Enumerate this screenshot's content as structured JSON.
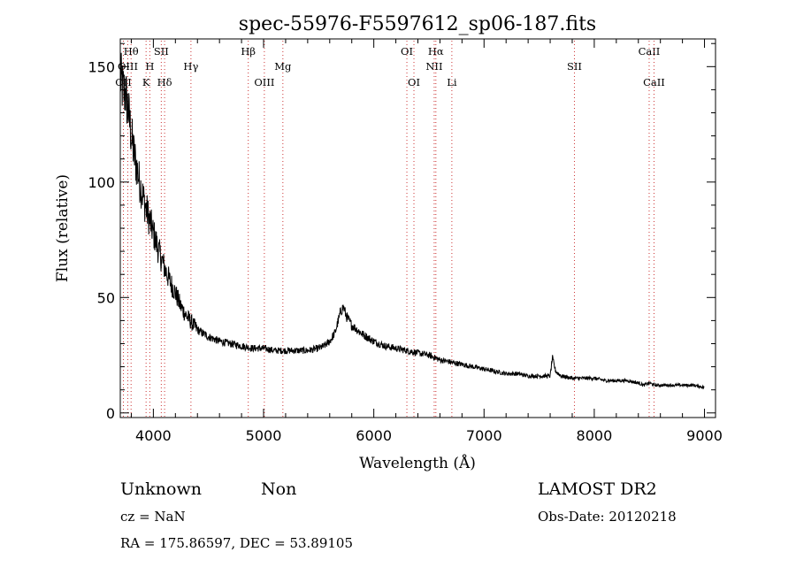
{
  "chart_data": {
    "type": "line",
    "title": "spec-55976-F5597612_sp06-187.fits",
    "xlabel": "Wavelength (Å)",
    "ylabel": "Flux (relative)",
    "xlim": [
      3700,
      9100
    ],
    "ylim": [
      -2,
      162
    ],
    "xticks": [
      4000,
      5000,
      6000,
      7000,
      8000,
      9000
    ],
    "yticks": [
      0,
      50,
      100,
      150
    ],
    "x_tick_labels": [
      "4000",
      "5000",
      "6000",
      "7000",
      "8000",
      "9000"
    ],
    "y_tick_labels": [
      "0",
      "50",
      "100",
      "150"
    ],
    "grid": false,
    "series": [
      {
        "color": "#000000",
        "x": [
          3700,
          3725,
          3750,
          3775,
          3800,
          3825,
          3850,
          3875,
          3900,
          3925,
          3950,
          3975,
          4000,
          4050,
          4100,
          4150,
          4200,
          4250,
          4300,
          4350,
          4400,
          4500,
          4600,
          4700,
          4800,
          4900,
          5000,
          5100,
          5200,
          5300,
          5400,
          5500,
          5550,
          5600,
          5650,
          5700,
          5725,
          5750,
          5775,
          5800,
          5850,
          5900,
          6000,
          6100,
          6200,
          6300,
          6400,
          6500,
          6600,
          6700,
          6800,
          6900,
          7000,
          7100,
          7200,
          7300,
          7400,
          7500,
          7550,
          7600,
          7620,
          7650,
          7700,
          7800,
          7900,
          8000,
          8100,
          8200,
          8300,
          8400,
          8450,
          8500,
          8550,
          8600,
          8700,
          8800,
          8900,
          9000
        ],
        "y": [
          145,
          140,
          138,
          130,
          120,
          112,
          106,
          100,
          95,
          90,
          86,
          82,
          78,
          70,
          63,
          57,
          52,
          46,
          42,
          39,
          36,
          33,
          31,
          30,
          29,
          28,
          28,
          27,
          27,
          27,
          27,
          28,
          29,
          31,
          35,
          44,
          46,
          42,
          40,
          38,
          36,
          34,
          31,
          29,
          28,
          27,
          26,
          25,
          23,
          22,
          21,
          20,
          19,
          18,
          17,
          17,
          16,
          16,
          16,
          16,
          24,
          18,
          16,
          15,
          15,
          15,
          14,
          14,
          14,
          13,
          12,
          13,
          12,
          12,
          12,
          12,
          12,
          11
        ]
      }
    ],
    "line_markers": [
      {
        "label": "Hθ",
        "x": 3798,
        "row": 1
      },
      {
        "label": "OIII",
        "x": 3768,
        "row": 2
      },
      {
        "label": "OII",
        "x": 3728,
        "row": 3
      },
      {
        "label": "SII",
        "x": 4072,
        "row": 1
      },
      {
        "label": "H",
        "x": 3968,
        "row": 2
      },
      {
        "label": "K",
        "x": 3934,
        "row": 3
      },
      {
        "label": "Hδ",
        "x": 4102,
        "row": 3
      },
      {
        "label": "Hγ",
        "x": 4341,
        "row": 2
      },
      {
        "label": "Hβ",
        "x": 4861,
        "row": 1
      },
      {
        "label": "Mg",
        "x": 5175,
        "row": 2
      },
      {
        "label": "OIII",
        "x": 5007,
        "row": 3
      },
      {
        "label": "OI",
        "x": 6300,
        "row": 1
      },
      {
        "label": "OI",
        "x": 6364,
        "row": 3
      },
      {
        "label": "Hα",
        "x": 6563,
        "row": 1
      },
      {
        "label": "NII",
        "x": 6548,
        "row": 2
      },
      {
        "label": "Li",
        "x": 6708,
        "row": 3
      },
      {
        "label": "SII",
        "x": 7820,
        "row": 2
      },
      {
        "label": "CaII",
        "x": 8498,
        "row": 1
      },
      {
        "label": "CaII",
        "x": 8542,
        "row": 3
      }
    ]
  },
  "info": {
    "class": "Unknown",
    "subclass": "Non",
    "survey": "LAMOST DR2",
    "cz": "cz = NaN",
    "obs_date": "Obs-Date: 20120218",
    "coords": "RA = 175.86597, DEC =  53.89105"
  }
}
